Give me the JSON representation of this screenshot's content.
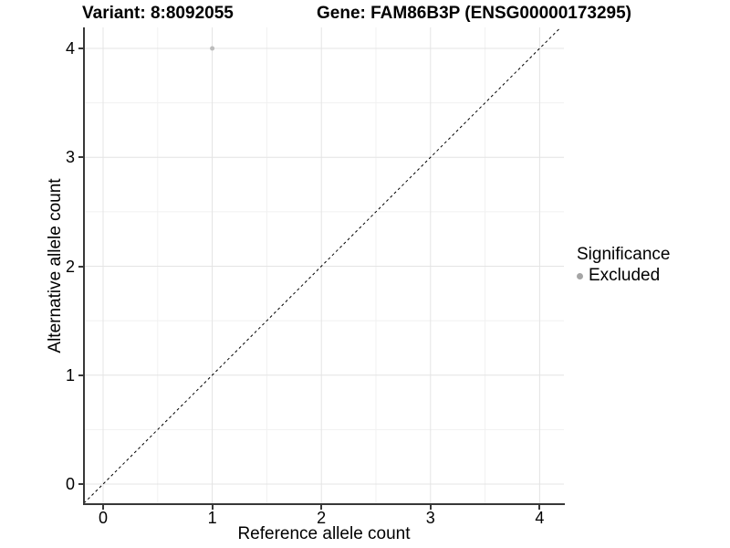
{
  "chart_data": {
    "type": "scatter",
    "title_left": "Variant: 8:8092055",
    "title_right": "Gene: FAM86B3P (ENSG00000173295)",
    "xlabel": "Reference allele count",
    "ylabel": "Alternative allele count",
    "xlim": [
      -0.18,
      4.22
    ],
    "ylim": [
      -0.18,
      4.19
    ],
    "x_ticks": [
      0,
      1,
      2,
      3,
      4
    ],
    "y_ticks": [
      0,
      1,
      2,
      3,
      4
    ],
    "x_minor_ticks": [
      0.5,
      1.5,
      2.5,
      3.5
    ],
    "y_minor_ticks": [
      0.5,
      1.5,
      2.5,
      3.5
    ],
    "grid": "major and minor gridlines on white panel",
    "series": [
      {
        "name": "Excluded",
        "marker": "circle",
        "color": "#bcbcbc",
        "point_radius": 2.5,
        "points": [
          {
            "x": 1,
            "y": 4
          }
        ]
      }
    ],
    "reference_line": {
      "slope": 1,
      "intercept": 0,
      "style": "dashed",
      "color": "#000000"
    },
    "legend": {
      "title": "Significance",
      "position": "right",
      "items": [
        {
          "label": "Excluded",
          "marker": "circle",
          "color": "#a5a5a5"
        }
      ]
    }
  },
  "colors": {
    "background": "#ffffff",
    "panel_background": "#ffffff",
    "grid_major": "#e4e4e4",
    "grid_minor": "#f1f1f1",
    "axis_line": "#383838",
    "text": "#000000"
  }
}
